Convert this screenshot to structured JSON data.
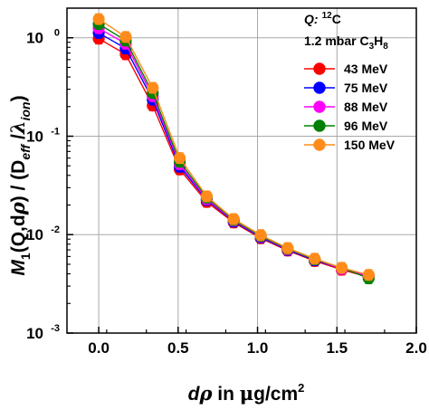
{
  "chart_data": {
    "type": "scatter",
    "xlabel_parts": [
      "d",
      "ρ",
      " in ",
      "μ",
      "g/cm",
      "2"
    ],
    "ylabel_parts": [
      "M",
      "1",
      "(Q,d",
      "ρ",
      ") / (D",
      "eff",
      " /",
      "λ",
      "ion",
      ")"
    ],
    "xlim": [
      -0.2,
      2.0
    ],
    "ylim": [
      0.001,
      2
    ],
    "yscale": "log",
    "grid": true,
    "x_ticks": [
      "0.0",
      "0.5",
      "1.0",
      "1.5",
      "2.0"
    ],
    "x_tick_values": [
      0.0,
      0.5,
      1.0,
      1.5,
      2.0
    ],
    "y_ticks": [
      {
        "mantissa": "10",
        "exp": "0",
        "value": 1
      },
      {
        "mantissa": "10",
        "exp": "-1",
        "value": 0.1
      },
      {
        "mantissa": "10",
        "exp": "-2",
        "value": 0.01
      },
      {
        "mantissa": "10",
        "exp": "-3",
        "value": 0.001
      }
    ],
    "legend_header": {
      "projectile_label": "Q:",
      "projectile_mass": "12",
      "projectile_symbol": "C",
      "gas_pre": "1.2 mbar C",
      "gas_sub1": "3",
      "gas_mid": "H",
      "gas_sub2": "8"
    },
    "legend_placement": "top-right",
    "x": [
      0.0,
      0.17,
      0.34,
      0.51,
      0.68,
      0.85,
      1.02,
      1.19,
      1.36,
      1.53,
      1.7
    ],
    "series": [
      {
        "name": "43 MeV",
        "color": "#ff0000",
        "values": [
          0.98,
          0.68,
          0.205,
          0.046,
          0.0215,
          0.0133,
          0.0092,
          0.0069,
          0.0054,
          0.0044,
          0.0037
        ]
      },
      {
        "name": "75 MeV",
        "color": "#0000ff",
        "values": [
          1.12,
          0.78,
          0.235,
          0.049,
          0.0225,
          0.0136,
          0.0094,
          0.007,
          0.0055,
          0.0045,
          0.0038
        ]
      },
      {
        "name": "88 MeV",
        "color": "#ff00ff",
        "values": [
          1.25,
          0.87,
          0.255,
          0.052,
          0.023,
          0.0139,
          0.0096,
          0.0071,
          0.0056,
          0.0045,
          0.0038
        ]
      },
      {
        "name": "96 MeV",
        "color": "#008000",
        "values": [
          1.38,
          0.94,
          0.275,
          0.055,
          0.0238,
          0.0141,
          0.0097,
          0.0072,
          0.0056,
          0.0046,
          0.0036
        ]
      },
      {
        "name": "150 MeV",
        "color": "#ff8c1a",
        "values": [
          1.55,
          1.02,
          0.31,
          0.06,
          0.0245,
          0.0144,
          0.0099,
          0.0073,
          0.0057,
          0.0046,
          0.0039
        ]
      }
    ]
  }
}
